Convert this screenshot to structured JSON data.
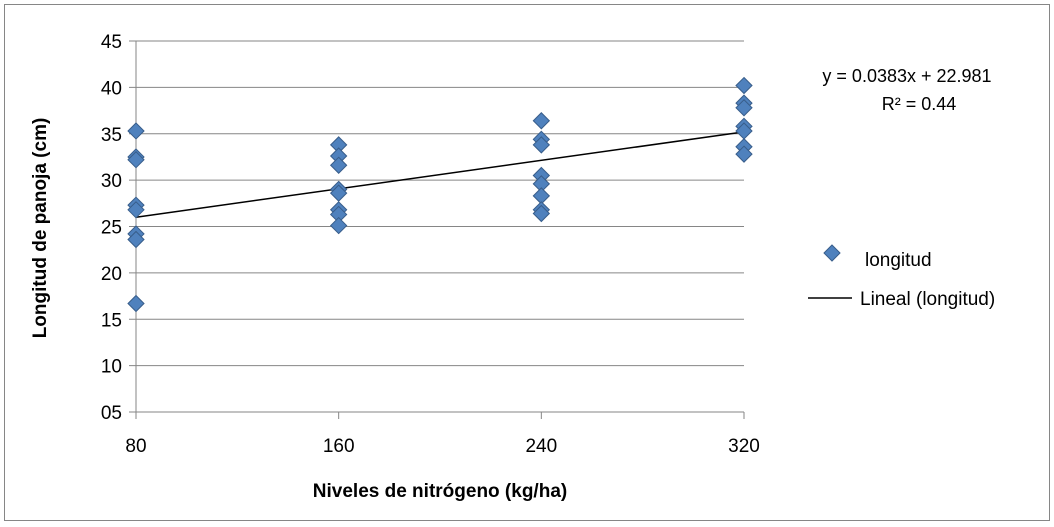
{
  "chart_data": {
    "type": "scatter",
    "title": "",
    "xlabel": "Niveles de nitrógeno (kg/ha)",
    "ylabel": "Longitud de panoja (cm)",
    "x_categories": [
      80,
      160,
      240,
      320
    ],
    "x_tick_labels": [
      "80",
      "160",
      "240",
      "320"
    ],
    "ylim": [
      5,
      45
    ],
    "y_tick_values": [
      5,
      10,
      15,
      20,
      25,
      30,
      35,
      40,
      45
    ],
    "y_tick_labels": [
      "05",
      "10",
      "15",
      "20",
      "25",
      "30",
      "35",
      "40",
      "45"
    ],
    "grid": true,
    "legend_position": "right",
    "series": [
      {
        "name": "longitud",
        "color": "#4f81bd",
        "marker": "diamond",
        "points": [
          {
            "x": 80,
            "y": 35.3
          },
          {
            "x": 80,
            "y": 32.5
          },
          {
            "x": 80,
            "y": 32.2
          },
          {
            "x": 80,
            "y": 27.3
          },
          {
            "x": 80,
            "y": 26.8
          },
          {
            "x": 80,
            "y": 24.2
          },
          {
            "x": 80,
            "y": 23.6
          },
          {
            "x": 80,
            "y": 16.7
          },
          {
            "x": 160,
            "y": 33.8
          },
          {
            "x": 160,
            "y": 32.6
          },
          {
            "x": 160,
            "y": 31.6
          },
          {
            "x": 160,
            "y": 29.0
          },
          {
            "x": 160,
            "y": 28.6
          },
          {
            "x": 160,
            "y": 26.8
          },
          {
            "x": 160,
            "y": 26.3
          },
          {
            "x": 160,
            "y": 25.1
          },
          {
            "x": 240,
            "y": 36.4
          },
          {
            "x": 240,
            "y": 34.4
          },
          {
            "x": 240,
            "y": 33.8
          },
          {
            "x": 240,
            "y": 30.5
          },
          {
            "x": 240,
            "y": 29.6
          },
          {
            "x": 240,
            "y": 28.3
          },
          {
            "x": 240,
            "y": 26.8
          },
          {
            "x": 240,
            "y": 26.4
          },
          {
            "x": 320,
            "y": 40.2
          },
          {
            "x": 320,
            "y": 38.3
          },
          {
            "x": 320,
            "y": 37.8
          },
          {
            "x": 320,
            "y": 35.8
          },
          {
            "x": 320,
            "y": 35.3
          },
          {
            "x": 320,
            "y": 33.6
          },
          {
            "x": 320,
            "y": 32.8
          }
        ]
      },
      {
        "name": "Lineal (longitud)",
        "type": "trendline",
        "color": "#000000",
        "points": [
          {
            "x": 80,
            "y": 26.0
          },
          {
            "x": 320,
            "y": 35.2
          }
        ]
      }
    ],
    "annotations": {
      "equation": "y = 0.0383x + 22.981",
      "r_squared": "R² = 0.44"
    }
  }
}
